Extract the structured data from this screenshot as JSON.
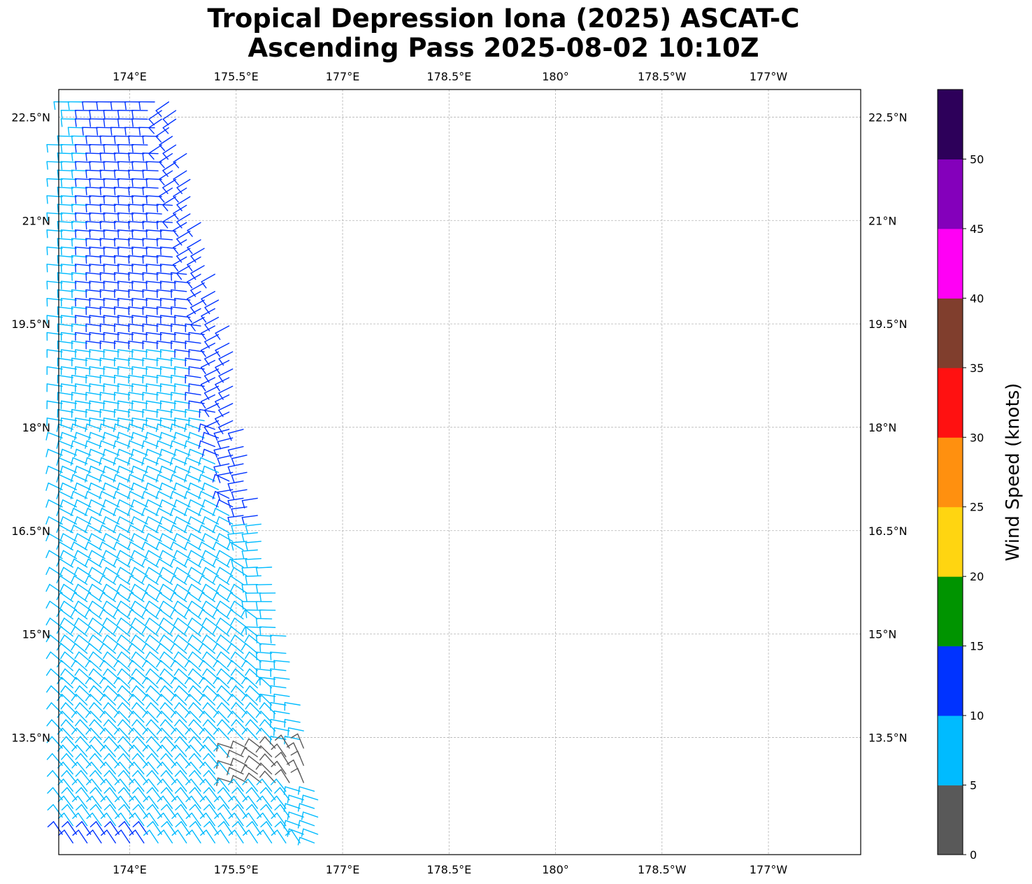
{
  "title": "Tropical Depression Iona (2025) ASCAT-C",
  "subtitle": "Ascending Pass 2025-08-02 10:10Z",
  "map": {
    "lon_range": [
      173.0,
      184.3
    ],
    "lat_range": [
      11.8,
      22.9
    ],
    "lon_gridlines": [
      174.0,
      175.5,
      177.0,
      178.5,
      180.0,
      181.5,
      183.0
    ],
    "lon_labels": [
      "174°E",
      "175.5°E",
      "177°E",
      "178.5°E",
      "180°",
      "178.5°W",
      "177°W"
    ],
    "lat_gridlines": [
      13.5,
      15.0,
      16.5,
      18.0,
      19.5,
      21.0,
      22.5
    ],
    "lat_labels": [
      "13.5°N",
      "15°N",
      "16.5°N",
      "18°N",
      "19.5°N",
      "21°N",
      "22.5°N"
    ],
    "grid": true,
    "swath_east_edge": [
      [
        22.6,
        174.7
      ],
      [
        21.0,
        175.0
      ],
      [
        19.5,
        175.4
      ],
      [
        18.0,
        175.6
      ],
      [
        16.5,
        175.9
      ],
      [
        15.0,
        176.2
      ],
      [
        13.5,
        176.5
      ],
      [
        11.8,
        176.8
      ]
    ],
    "wind_barbs_note_free": true
  },
  "colorbar": {
    "label": "Wind Speed (knots)",
    "tick_labels": [
      "0",
      "5",
      "10",
      "15",
      "20",
      "25",
      "30",
      "35",
      "40",
      "45",
      "50"
    ],
    "bins": [
      {
        "min": 0,
        "max": 5,
        "color": "#595959"
      },
      {
        "min": 5,
        "max": 10,
        "color": "#00bbff"
      },
      {
        "min": 10,
        "max": 15,
        "color": "#0033ff"
      },
      {
        "min": 15,
        "max": 20,
        "color": "#009400"
      },
      {
        "min": 20,
        "max": 25,
        "color": "#ffd511"
      },
      {
        "min": 25,
        "max": 30,
        "color": "#ff900f"
      },
      {
        "min": 30,
        "max": 35,
        "color": "#ff1111"
      },
      {
        "min": 35,
        "max": 40,
        "color": "#803e2d"
      },
      {
        "min": 40,
        "max": 45,
        "color": "#ff00f5"
      },
      {
        "min": 45,
        "max": 50,
        "color": "#8400bb"
      },
      {
        "min": 50,
        "max": 55,
        "color": "#2d005a"
      }
    ]
  }
}
